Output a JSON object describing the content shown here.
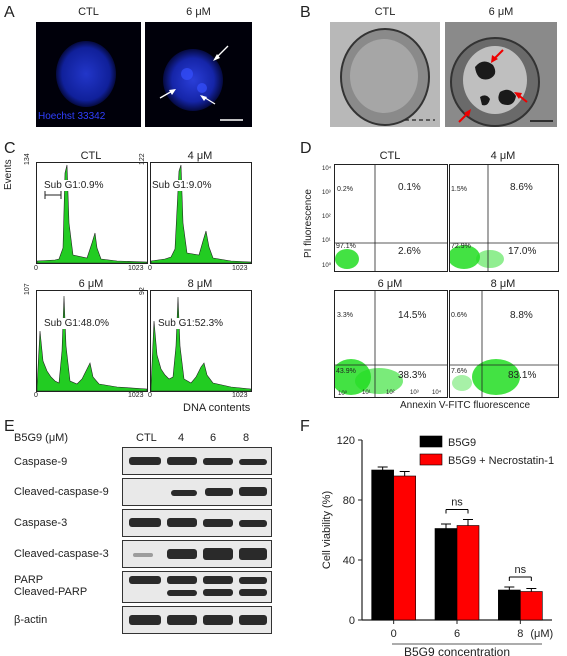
{
  "panel_letters": [
    "A",
    "B",
    "C",
    "D",
    "E",
    "F"
  ],
  "panelA": {
    "labels": [
      "CTL",
      "6 μM"
    ],
    "stain": "Hoechst 33342"
  },
  "panelB": {
    "labels": [
      "CTL",
      "6 μM"
    ]
  },
  "panelC": {
    "ylabel": "Events",
    "xlabel": "DNA contents",
    "xtick_start": "0",
    "xtick_end": "1023",
    "plots": [
      {
        "title": "CTL",
        "ymax": "134",
        "sub_label": "Sub G1:0.9%"
      },
      {
        "title": "4 μM",
        "ymax": "122",
        "sub_label": "Sub G1:9.0%"
      },
      {
        "title": "6 μM",
        "ymax": "107",
        "sub_label": "Sub G1:48.0%"
      },
      {
        "title": "8 μM",
        "ymax": "92",
        "sub_label": "Sub G1:52.3%"
      }
    ]
  },
  "panelD": {
    "ylabel": "PI fluorescence",
    "xlabel": "Annexin V-FITC  fluorescence",
    "plots": [
      {
        "title": "CTL",
        "ul": "0.2%",
        "ur": "0.1%",
        "ll": "97.1%",
        "lr": "2.6%"
      },
      {
        "title": "4 μM",
        "ul": "1.5%",
        "ur": "8.6%",
        "ll": "72.9%",
        "lr": "17.0%"
      },
      {
        "title": "6 μM",
        "ul": "3.3%",
        "ur": "14.5%",
        "ll": "43.9%",
        "lr": "38.3%"
      },
      {
        "title": "8 μM",
        "ul": "0.6%",
        "ur": "8.8%",
        "ll": "7.6%",
        "lr": "83.1%"
      }
    ],
    "ticks": [
      "10⁰",
      "10¹",
      "10²",
      "10³",
      "10⁴"
    ]
  },
  "panelE": {
    "header": "B5G9 (μM)",
    "lanes": [
      "CTL",
      "4",
      "6",
      "8"
    ],
    "rows": [
      "Caspase-9",
      "Cleaved-caspase-9",
      "Caspase-3",
      "Cleaved-caspase-3",
      "PARP",
      "Cleaved-PARP",
      "β-actin"
    ]
  },
  "chart_data": {
    "type": "bar",
    "categories": [
      "0",
      "6",
      "8"
    ],
    "xlabel": "B5G9 concentration",
    "xunit": "(μM)",
    "ylabel": "Cell viability (%)",
    "ylim": [
      0,
      120
    ],
    "yticks": [
      "0",
      "40",
      "80",
      "120"
    ],
    "series": [
      {
        "name": "B5G9",
        "values": [
          100,
          61,
          20
        ],
        "errors": [
          2,
          3,
          2
        ],
        "color": "#000000"
      },
      {
        "name": "B5G9 + Necrostatin-1",
        "values": [
          96,
          63,
          19
        ],
        "errors": [
          3,
          4,
          2
        ],
        "color": "#ff0000"
      }
    ],
    "annotations": [
      "ns",
      "ns"
    ],
    "legend": "top-right"
  }
}
